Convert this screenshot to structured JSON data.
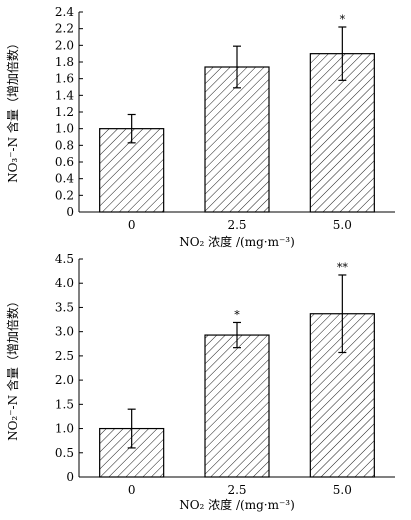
{
  "chart_data": [
    {
      "type": "bar",
      "categories": [
        "0",
        "2.5",
        "5.0"
      ],
      "values": [
        1.0,
        1.74,
        1.9
      ],
      "errors": [
        0.17,
        0.25,
        0.32
      ],
      "significance": [
        "",
        "",
        "*"
      ],
      "ylim": [
        0,
        2.4
      ],
      "yticks": [
        "0",
        "0.2",
        "0.4",
        "0.6",
        "0.8",
        "1.0",
        "1.2",
        "1.4",
        "1.6",
        "1.8",
        "2.0",
        "2.2",
        "2.4"
      ],
      "ylabel": "NO₃⁻-N 含量（增加倍数）",
      "xlabel": "NO₂ 浓度 /(mg·m⁻³)",
      "grid": false,
      "bar_fill": "diagonal-hatch",
      "bar_color": "#000000"
    },
    {
      "type": "bar",
      "categories": [
        "0",
        "2.5",
        "5.0"
      ],
      "values": [
        1.0,
        2.93,
        3.37
      ],
      "errors": [
        0.4,
        0.26,
        0.8
      ],
      "significance": [
        "",
        "*",
        "**"
      ],
      "ylim": [
        0,
        4.5
      ],
      "yticks": [
        "0",
        "0.5",
        "1.0",
        "1.5",
        "2.0",
        "2.5",
        "3.0",
        "3.5",
        "4.0",
        "4.5"
      ],
      "ylabel": "NO₂⁻-N 含量（增加倍数）",
      "xlabel": "NO₂ 浓度 /(mg·m⁻³)",
      "grid": false,
      "bar_fill": "diagonal-hatch",
      "bar_color": "#000000"
    }
  ]
}
